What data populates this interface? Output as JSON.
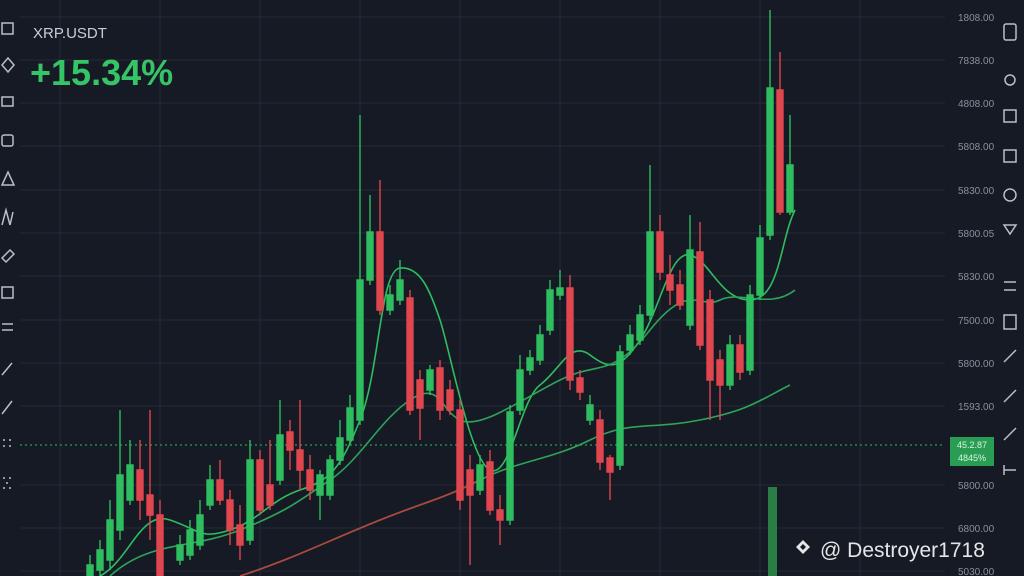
{
  "header": {
    "symbol": "XRP.USDT",
    "change": "+15.34%"
  },
  "price_axis": [
    "1808.00",
    "7838.00",
    "4808.00",
    "5808.00",
    "5830.00",
    "5800.05",
    "5830.00",
    "7500.00",
    "5800.00",
    "1593.00",
    "5800.00",
    "6800.00",
    "5030.00"
  ],
  "price_tag": [
    "45.2.87",
    "4845%"
  ],
  "watermark": "@ Destroyer1718"
}
